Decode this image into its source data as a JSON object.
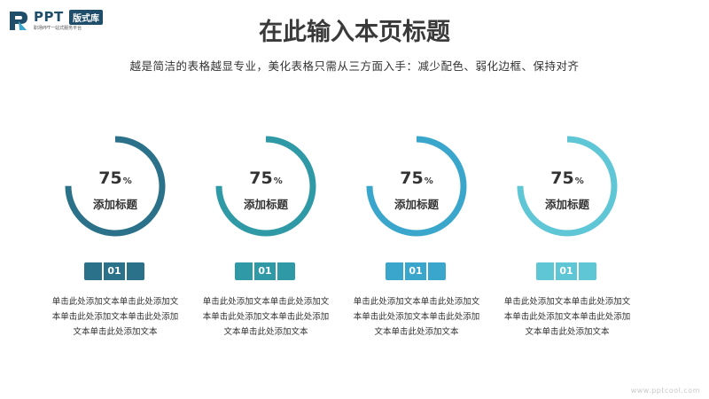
{
  "logo": {
    "brand": "PPT",
    "badge": "版式库",
    "tagline": "职场PPT一站式服务平台"
  },
  "title": "在此输入本页标题",
  "subtitle": "越是简洁的表格越显专业，美化表格只需从三方面入手：减少配色、弱化边框、保持对齐",
  "cards": [
    {
      "value": 75,
      "value_text": "75",
      "unit": "%",
      "title": "添加标题",
      "number": "01",
      "color": "#2b7189",
      "light": "#3f8aa2",
      "desc": [
        "单击此处添加文本单击此处添加文",
        "本单击此处添加文本单击此处添加",
        "文本单击此处添加文本"
      ]
    },
    {
      "value": 75,
      "value_text": "75",
      "unit": "%",
      "title": "添加标题",
      "number": "01",
      "color": "#2f9aa5",
      "light": "#48aeb8",
      "desc": [
        "单击此处添加文本单击此处添加文",
        "本单击此处添加文本单击此处添加",
        "文本单击此处添加文本"
      ]
    },
    {
      "value": 75,
      "value_text": "75",
      "unit": "%",
      "title": "添加标题",
      "number": "01",
      "color": "#3aa6cc",
      "light": "#5bb8da",
      "desc": [
        "单击此处添加文本单击此处添加文",
        "本单击此处添加文本单击此处添加",
        "文本单击此处添加文本"
      ]
    },
    {
      "value": 75,
      "value_text": "75",
      "unit": "%",
      "title": "添加标题",
      "number": "01",
      "color": "#5fc6d6",
      "light": "#86d6e2",
      "desc": [
        "单击此处添加文本单击此处添加文",
        "本单击此处添加文本单击此处添加",
        "文本单击此处添加文本"
      ]
    }
  ],
  "footer": "www.pptcool.com"
}
